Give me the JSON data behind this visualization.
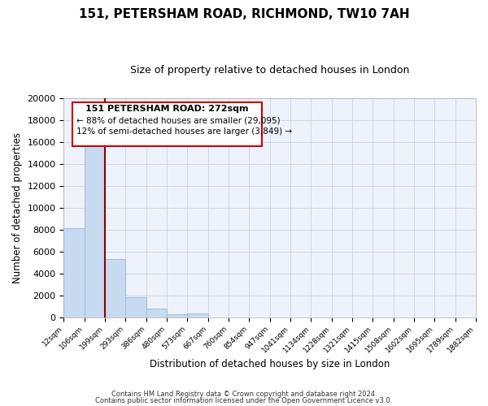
{
  "title": "151, PETERSHAM ROAD, RICHMOND, TW10 7AH",
  "subtitle": "Size of property relative to detached houses in London",
  "xlabel": "Distribution of detached houses by size in London",
  "ylabel": "Number of detached properties",
  "bar_color": "#c8daf0",
  "bar_edge_color": "#9ab8d8",
  "vline_color": "#8b0000",
  "vline_x": 2.0,
  "annotation_title": "151 PETERSHAM ROAD: 272sqm",
  "annotation_line1": "← 88% of detached houses are smaller (29,095)",
  "annotation_line2": "12% of semi-detached houses are larger (3,849) →",
  "annotation_box_color": "#ffffff",
  "annotation_box_edge": "#cc0000",
  "bar_values": [
    8150,
    16550,
    5300,
    1800,
    750,
    280,
    310,
    0,
    0,
    0,
    0,
    0,
    0,
    0,
    0,
    0,
    0,
    0,
    0,
    0
  ],
  "x_labels": [
    "12sqm",
    "106sqm",
    "199sqm",
    "293sqm",
    "386sqm",
    "480sqm",
    "573sqm",
    "667sqm",
    "760sqm",
    "854sqm",
    "947sqm",
    "1041sqm",
    "1134sqm",
    "1228sqm",
    "1321sqm",
    "1415sqm",
    "1508sqm",
    "1602sqm",
    "1695sqm",
    "1789sqm",
    "1882sqm"
  ],
  "ylim": [
    0,
    20000
  ],
  "yticks": [
    0,
    2000,
    4000,
    6000,
    8000,
    10000,
    12000,
    14000,
    16000,
    18000,
    20000
  ],
  "footer_line1": "Contains HM Land Registry data © Crown copyright and database right 2024.",
  "footer_line2": "Contains public sector information licensed under the Open Government Licence v3.0.",
  "background_color": "#ffffff",
  "plot_bg_color": "#eef2fa"
}
